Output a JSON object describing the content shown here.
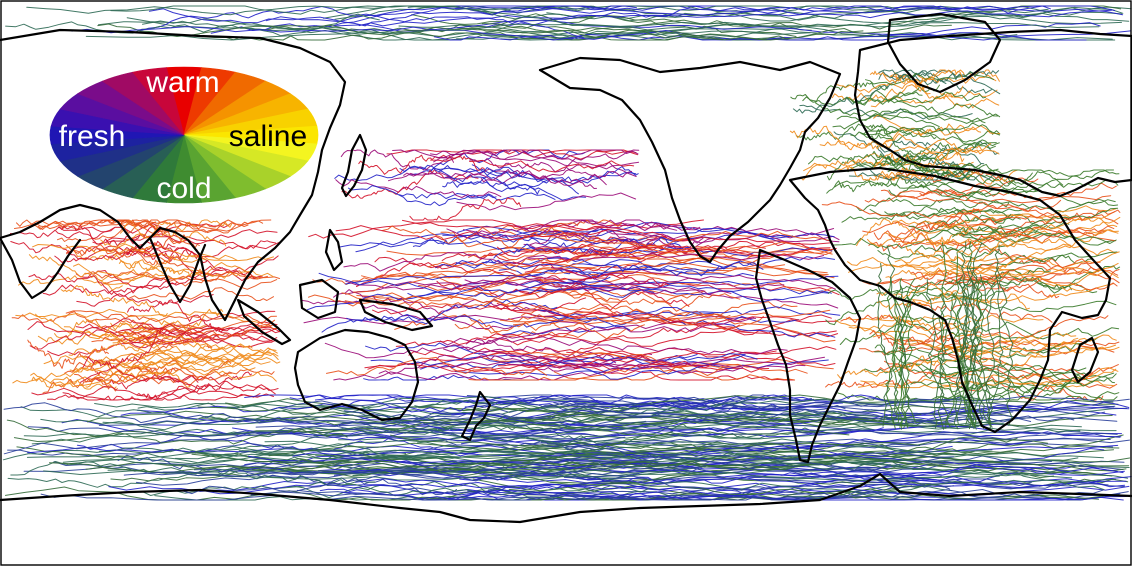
{
  "legend": {
    "top": "warm",
    "left": "fresh",
    "right": "saline",
    "bottom": "cold",
    "top_color": "#ffffff",
    "side_color": "#ffffff",
    "right_color": "#000000",
    "wheel_colors": [
      "#e80000",
      "#ee3a00",
      "#f06a00",
      "#f59300",
      "#f7b400",
      "#f8d200",
      "#fbe600",
      "#f4f520",
      "#d6e825",
      "#a9d22a",
      "#7fbd2e",
      "#5aa431",
      "#3f8c30",
      "#2f7a3a",
      "#285f55",
      "#23446e",
      "#1f3088",
      "#1d22a0",
      "#2016b4",
      "#3a10b0",
      "#5a0ea0",
      "#7a0c8a",
      "#a00a64",
      "#c8063a"
    ]
  },
  "palette": {
    "indian_warm": "#e8501a",
    "pacific_warm": "#d4132a",
    "pacific_violet": "#9a0a78",
    "fresh_blue": "#2222c8",
    "atlantic_orange": "#f08a1a",
    "atlantic_green": "#3a7a2a",
    "southern_blue": "#2a3f9a",
    "southern_green": "#356b3a",
    "arctic_green": "#2f6a55",
    "coast": "#000000"
  }
}
